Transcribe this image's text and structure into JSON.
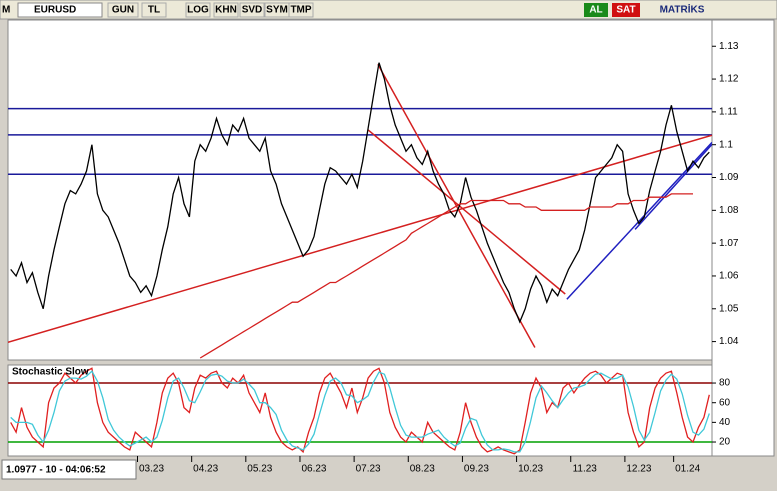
{
  "toolbar": {
    "symbol_icon": "M",
    "symbol": "EURUSD",
    "buttons": [
      "GUN",
      "TL",
      "LOG",
      "KHN",
      "SVD",
      "SYM",
      "TMP"
    ],
    "al": "AL",
    "sat": "SAT",
    "brand": "MATRİKS"
  },
  "status": "1.0977 - 10 - 04:06:52",
  "chart_data": [
    {
      "type": "line",
      "categories": [
        null,
        null,
        null,
        null,
        null,
        null,
        null,
        null,
        null,
        null,
        null,
        null,
        null,
        null,
        null,
        null,
        null,
        null,
        null,
        null,
        null,
        null,
        null,
        null,
        null,
        null,
        "03.23",
        null,
        null,
        null,
        null,
        null,
        null,
        null,
        null,
        null,
        "04.23",
        null,
        null,
        null,
        null,
        null,
        null,
        null,
        null,
        null,
        "05.23",
        null,
        null,
        null,
        null,
        null,
        null,
        null,
        null,
        null,
        "06.23",
        null,
        null,
        null,
        null,
        null,
        null,
        null,
        null,
        null,
        "07.23",
        null,
        null,
        null,
        null,
        null,
        null,
        null,
        null,
        null,
        "08.23",
        null,
        null,
        null,
        null,
        null,
        null,
        null,
        null,
        null,
        "09.23",
        null,
        null,
        null,
        null,
        null,
        null,
        null,
        null,
        null,
        "10.23",
        null,
        null,
        null,
        null,
        null,
        null,
        null,
        null,
        null,
        "11.23",
        null,
        null,
        null,
        null,
        null,
        null,
        null,
        null,
        null,
        "12.23",
        null,
        null,
        null,
        null,
        null,
        null,
        null,
        null,
        "01.24",
        null,
        null,
        null,
        null
      ],
      "series": [
        {
          "color": "#000000",
          "values": [
            1.062,
            1.06,
            1.064,
            1.058,
            1.061,
            1.055,
            1.05,
            1.06,
            1.068,
            1.075,
            1.082,
            1.086,
            1.085,
            1.088,
            1.092,
            1.1,
            1.085,
            1.08,
            1.078,
            1.074,
            1.07,
            1.065,
            1.06,
            1.058,
            1.055,
            1.057,
            1.054,
            1.06,
            1.068,
            1.075,
            1.085,
            1.09,
            1.082,
            1.078,
            1.095,
            1.1,
            1.098,
            1.102,
            1.108,
            1.103,
            1.1,
            1.106,
            1.104,
            1.108,
            1.102,
            1.1,
            1.098,
            1.102,
            1.092,
            1.088,
            1.082,
            1.078,
            1.074,
            1.07,
            1.066,
            1.068,
            1.072,
            1.08,
            1.088,
            1.093,
            1.092,
            1.09,
            1.088,
            1.091,
            1.087,
            1.095,
            1.105,
            1.115,
            1.125,
            1.12,
            1.112,
            1.106,
            1.102,
            1.098,
            1.1,
            1.096,
            1.094,
            1.098,
            1.092,
            1.088,
            1.085,
            1.08,
            1.078,
            1.082,
            1.09,
            1.084,
            1.08,
            1.075,
            1.07,
            1.066,
            1.062,
            1.058,
            1.055,
            1.05,
            1.046,
            1.05,
            1.056,
            1.06,
            1.057,
            1.052,
            1.056,
            1.054,
            1.058,
            1.062,
            1.065,
            1.068,
            1.074,
            1.082,
            1.09,
            1.092,
            1.094,
            1.096,
            1.1,
            1.098,
            1.085,
            1.08,
            1.076,
            1.078,
            1.086,
            1.092,
            1.098,
            1.106,
            1.112,
            1.104,
            1.098,
            1.092,
            1.095,
            1.093,
            1.096,
            1.0977
          ]
        },
        {
          "color": "#d42020",
          "values": [
            null,
            null,
            null,
            null,
            null,
            null,
            null,
            null,
            null,
            null,
            null,
            null,
            null,
            null,
            null,
            null,
            null,
            null,
            null,
            null,
            null,
            null,
            null,
            null,
            null,
            null,
            null,
            null,
            null,
            null,
            null,
            null,
            null,
            null,
            null,
            1.035,
            1.036,
            1.037,
            1.038,
            1.039,
            1.04,
            1.041,
            1.042,
            1.043,
            1.044,
            1.045,
            1.046,
            1.047,
            1.048,
            1.049,
            1.05,
            1.051,
            1.052,
            1.052,
            1.053,
            1.054,
            1.055,
            1.056,
            1.057,
            1.058,
            1.058,
            1.059,
            1.06,
            1.061,
            1.062,
            1.063,
            1.064,
            1.065,
            1.066,
            1.067,
            1.068,
            1.069,
            1.07,
            1.071,
            1.073,
            1.074,
            1.075,
            1.076,
            1.077,
            1.078,
            1.079,
            1.08,
            1.081,
            1.082,
            1.082,
            1.083,
            1.083,
            1.083,
            1.083,
            1.083,
            1.083,
            1.083,
            1.082,
            1.082,
            1.082,
            1.081,
            1.081,
            1.081,
            1.08,
            1.08,
            1.08,
            1.08,
            1.08,
            1.08,
            1.08,
            1.08,
            1.08,
            1.081,
            1.081,
            1.081,
            1.081,
            1.081,
            1.082,
            1.082,
            1.082,
            1.083,
            1.083,
            1.083,
            1.084,
            1.084,
            1.084,
            1.084,
            1.085,
            1.085,
            1.085,
            1.085,
            1.085,
            null,
            null,
            null
          ]
        }
      ],
      "hlines": {
        "color": "#1a1a9a",
        "values": [
          1.111,
          1.103,
          1.091
        ]
      },
      "trendlines": [
        {
          "color": "#d42020",
          "x": [
            -0.5,
            129.5
          ],
          "y": [
            1.0398,
            1.1029
          ]
        },
        {
          "color": "#d42020",
          "x": [
            67.8,
            96.8
          ],
          "y": [
            1.1245,
            1.0382
          ]
        },
        {
          "color": "#d42020",
          "x": [
            66,
            102.4
          ],
          "y": [
            1.1045,
            1.0545
          ]
        },
        {
          "color": "#2020c0",
          "x": [
            102.7,
            129.5
          ],
          "y": [
            1.0529,
            1.1007
          ]
        },
        {
          "color": "#2020c0",
          "x": [
            115.3,
            129.5
          ],
          "y": [
            1.0742,
            1.1001
          ]
        }
      ],
      "ylim": [
        1.035,
        1.138
      ],
      "yticks": [
        1.04,
        1.05,
        1.06,
        1.07,
        1.08,
        1.09,
        1.1,
        1.11,
        1.12,
        1.13
      ]
    },
    {
      "type": "line",
      "title": "Stochastic Slow",
      "series": [
        {
          "color": "#e02020",
          "values": [
            40,
            30,
            55,
            35,
            25,
            20,
            15,
            60,
            75,
            80,
            90,
            85,
            80,
            88,
            92,
            95,
            60,
            40,
            30,
            25,
            20,
            15,
            12,
            30,
            25,
            20,
            15,
            40,
            70,
            85,
            90,
            80,
            55,
            50,
            75,
            88,
            85,
            90,
            92,
            80,
            75,
            85,
            80,
            88,
            70,
            60,
            50,
            70,
            45,
            30,
            20,
            15,
            12,
            15,
            10,
            30,
            45,
            70,
            85,
            90,
            80,
            70,
            55,
            75,
            50,
            65,
            85,
            92,
            95,
            80,
            50,
            35,
            25,
            20,
            30,
            25,
            20,
            40,
            30,
            25,
            20,
            15,
            12,
            30,
            60,
            40,
            25,
            15,
            10,
            12,
            15,
            12,
            10,
            8,
            12,
            40,
            70,
            85,
            75,
            50,
            60,
            55,
            75,
            80,
            70,
            78,
            85,
            90,
            92,
            88,
            80,
            85,
            90,
            88,
            50,
            30,
            15,
            20,
            55,
            75,
            85,
            90,
            92,
            70,
            45,
            25,
            20,
            35,
            45,
            68
          ]
        },
        {
          "color": "#40c8d8",
          "values": [
            45,
            40,
            40,
            40,
            38,
            27,
            20,
            32,
            50,
            72,
            82,
            85,
            85,
            84,
            87,
            92,
            82,
            65,
            43,
            32,
            25,
            20,
            16,
            19,
            22,
            25,
            20,
            25,
            42,
            65,
            82,
            85,
            75,
            62,
            60,
            71,
            83,
            88,
            89,
            87,
            82,
            80,
            80,
            84,
            79,
            73,
            60,
            60,
            55,
            48,
            32,
            22,
            16,
            14,
            12,
            18,
            28,
            48,
            67,
            82,
            85,
            80,
            68,
            67,
            60,
            63,
            67,
            81,
            91,
            89,
            75,
            55,
            37,
            27,
            25,
            25,
            25,
            28,
            30,
            32,
            25,
            20,
            16,
            19,
            34,
            44,
            42,
            27,
            17,
            12,
            12,
            13,
            12,
            10,
            10,
            20,
            41,
            65,
            77,
            70,
            62,
            55,
            63,
            70,
            75,
            76,
            78,
            84,
            89,
            90,
            87,
            84,
            85,
            88,
            76,
            56,
            32,
            22,
            30,
            50,
            72,
            83,
            89,
            84,
            69,
            47,
            30,
            27,
            33,
            49
          ]
        }
      ],
      "levels": [
        {
          "value": 80,
          "color": "#8b0000"
        },
        {
          "value": 20,
          "color": "#00a000"
        }
      ],
      "ylim": [
        6.8,
        95.3
      ],
      "yticks": [
        20,
        40,
        60,
        80
      ]
    }
  ]
}
